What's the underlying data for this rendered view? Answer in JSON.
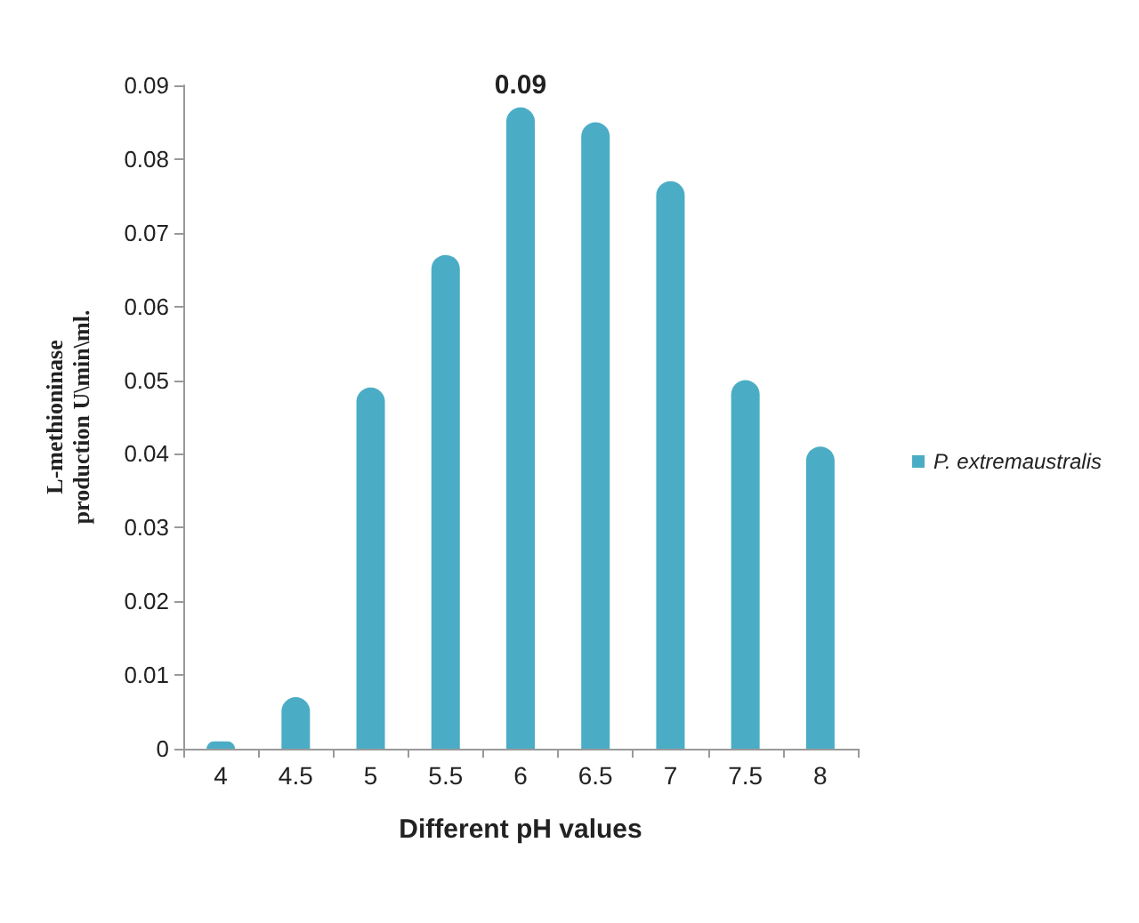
{
  "chart_data": {
    "type": "bar",
    "xlabel": "Different pH values",
    "ylabel": "L-methioninase\nproduction U\\min\\ml.",
    "categories": [
      "4",
      "4.5",
      "5",
      "5.5",
      "6",
      "6.5",
      "7",
      "7.5",
      "8"
    ],
    "series": [
      {
        "name": "P. extremaustralis",
        "color": "#4bacc6",
        "values": [
          0.001,
          0.007,
          0.049,
          0.067,
          0.087,
          0.085,
          0.077,
          0.05,
          0.041
        ],
        "value_labels": [
          null,
          null,
          null,
          null,
          "0.09",
          null,
          null,
          null,
          null
        ]
      }
    ],
    "ylim": [
      0,
      0.09
    ],
    "yticks": [
      0,
      0.01,
      0.02,
      0.03,
      0.04,
      0.05,
      0.06,
      0.07,
      0.08,
      0.09
    ],
    "grid": false,
    "legend": "right"
  }
}
